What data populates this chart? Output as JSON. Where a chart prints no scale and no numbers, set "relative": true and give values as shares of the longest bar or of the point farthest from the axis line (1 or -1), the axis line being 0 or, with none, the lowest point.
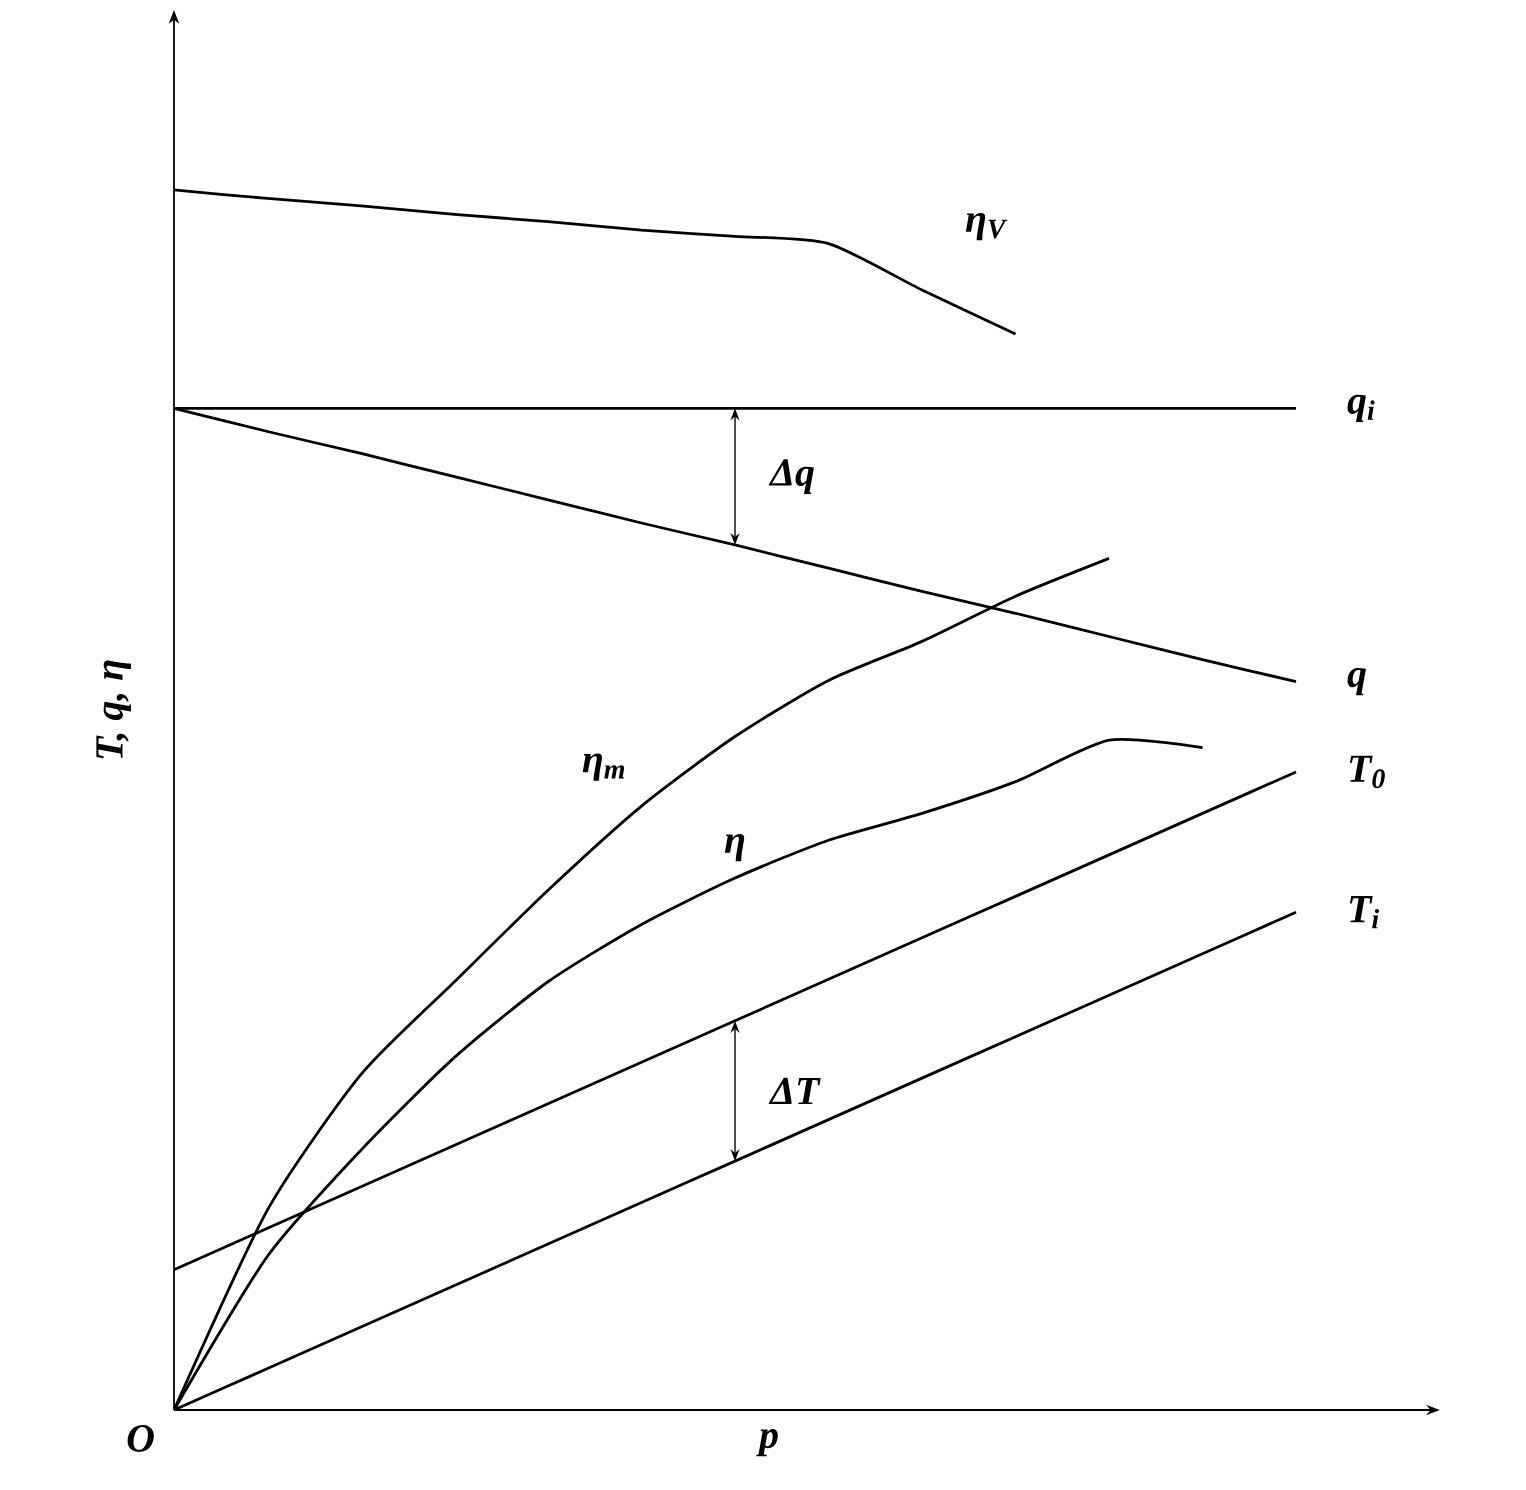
{
  "chart_data": {
    "type": "line",
    "relative": true,
    "xlabel": "p",
    "ylabel": "T, q, η",
    "categories": [
      null,
      null,
      null,
      null,
      null,
      null,
      null,
      null,
      null,
      null,
      null,
      null,
      null
    ],
    "series": [
      {
        "name": "η$_{V}$",
        "color": "#000000",
        "values": [
          1.0,
          0.993,
          0.987,
          0.98,
          0.974,
          0.967,
          0.962,
          0.956,
          0.918,
          0.882,
          null,
          null,
          null
        ]
      },
      {
        "name": "q$_{i}$",
        "color": "#000000",
        "values": [
          0.821,
          0.821,
          0.821,
          0.821,
          0.821,
          0.821,
          0.821,
          0.821,
          0.821,
          0.821,
          0.821,
          0.821,
          0.821
        ]
      },
      {
        "name": "q",
        "color": "#000000",
        "values": [
          0.821,
          0.802,
          0.784,
          0.765,
          0.746,
          0.727,
          0.709,
          0.69,
          0.671,
          0.653,
          0.634,
          0.615,
          0.597
        ]
      },
      {
        "name": "η$_{m}$",
        "color": "#000000",
        "values": [
          0,
          0.164,
          0.275,
          0.351,
          0.426,
          0.495,
          0.552,
          0.598,
          0.63,
          0.667,
          0.698,
          null,
          null
        ]
      },
      {
        "name": "η",
        "color": "#000000",
        "values": [
          0,
          0.126,
          0.213,
          0.289,
          0.351,
          0.398,
          0.436,
          0.467,
          0.489,
          0.515,
          0.549,
          0.543,
          null
        ]
      },
      {
        "name": "T$_{0}$",
        "color": "#000000",
        "values": [
          0.115,
          0.149,
          0.183,
          0.217,
          0.251,
          0.285,
          0.319,
          0.353,
          0.387,
          0.421,
          0.455,
          0.489,
          0.523
        ]
      },
      {
        "name": "T$_{i}$",
        "color": "#000000",
        "values": [
          0,
          0.034,
          0.068,
          0.102,
          0.136,
          0.17,
          0.204,
          0.238,
          0.272,
          0.306,
          0.34,
          0.374,
          0.408
        ]
      }
    ],
    "annotations": [
      "Δq",
      "ΔT",
      "O"
    ]
  }
}
